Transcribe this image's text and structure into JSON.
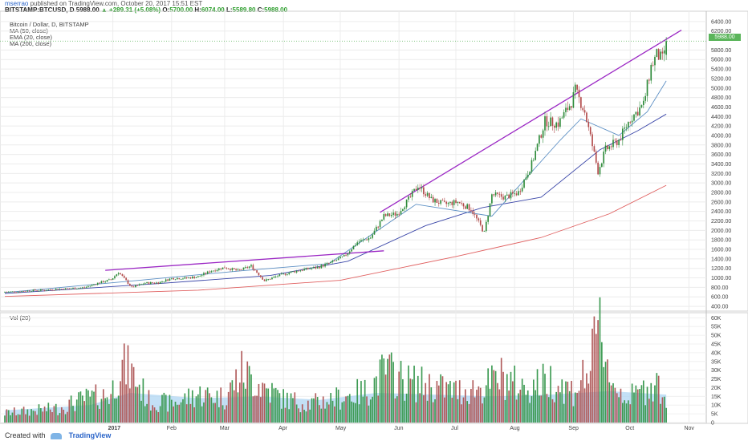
{
  "header": {
    "author": "mserrao",
    "published": "published on TradingView.com, October 20, 2017 15:51 EST",
    "symbol": "BITSTAMP:BTCUSD, D",
    "last": "5988.00",
    "change": "▲ +289.31 (+5.08%)",
    "open_label": "O:",
    "open": "5700.00",
    "high_label": "H:",
    "high": "6074.00",
    "low_label": "L:",
    "low": "5589.80",
    "close_label": "C:",
    "close": "5988.00"
  },
  "legend": [
    "Bitcoin / Dollar, D, BITSTAMP",
    "MA (50, close)",
    "EMA (20, close)",
    "MA (200, close)"
  ],
  "volume_title": "Vol (20)",
  "last_price_tag": "5988.00",
  "footer": {
    "created": "Created with",
    "brand": "TradingView"
  },
  "colors": {
    "up": "#2e8b3a",
    "down": "#b24a4a",
    "trendline": "#9b27c4",
    "ma50": "#3a46a8",
    "ema20": "#5c8fc4",
    "ma200": "#e06060",
    "vol_ma": "#a9d3f2"
  },
  "chart_data": [
    {
      "type": "candlestick",
      "title": "Bitcoin / Dollar, D, BITSTAMP",
      "x_tick_labels": [
        "2017",
        "Feb",
        "Mar",
        "Apr",
        "May",
        "Jun",
        "Jul",
        "Aug",
        "Sep",
        "Oct",
        "Nov"
      ],
      "y_ticks": [
        400,
        600,
        800,
        1000,
        1200,
        1400,
        1600,
        1800,
        2000,
        2200,
        2400,
        2600,
        2800,
        3000,
        3200,
        3400,
        3600,
        3800,
        4000,
        4200,
        4400,
        4600,
        4800,
        5000,
        5200,
        5400,
        5600,
        5800,
        6200,
        6400
      ],
      "ylim": [
        300,
        6550
      ],
      "x_range": [
        "2016-11-05",
        "2017-11-08"
      ],
      "grid": true,
      "closes_weekly": [
        [
          "2016-11-05",
          705
        ],
        [
          "2016-11-12",
          710
        ],
        [
          "2016-11-19",
          735
        ],
        [
          "2016-11-26",
          740
        ],
        [
          "2016-12-03",
          765
        ],
        [
          "2016-12-10",
          775
        ],
        [
          "2016-12-17",
          795
        ],
        [
          "2016-12-24",
          890
        ],
        [
          "2016-12-31",
          960
        ],
        [
          "2017-01-04",
          1120
        ],
        [
          "2017-01-11",
          800
        ],
        [
          "2017-01-18",
          890
        ],
        [
          "2017-01-25",
          900
        ],
        [
          "2017-02-01",
          990
        ],
        [
          "2017-02-08",
          995
        ],
        [
          "2017-02-15",
          1025
        ],
        [
          "2017-02-22",
          1150
        ],
        [
          "2017-03-01",
          1220
        ],
        [
          "2017-03-08",
          1150
        ],
        [
          "2017-03-15",
          1250
        ],
        [
          "2017-03-22",
          940
        ],
        [
          "2017-03-29",
          1040
        ],
        [
          "2017-04-05",
          1120
        ],
        [
          "2017-04-12",
          1180
        ],
        [
          "2017-04-19",
          1220
        ],
        [
          "2017-04-26",
          1320
        ],
        [
          "2017-05-03",
          1450
        ],
        [
          "2017-05-10",
          1750
        ],
        [
          "2017-05-17",
          1850
        ],
        [
          "2017-05-24",
          2300
        ],
        [
          "2017-05-31",
          2350
        ],
        [
          "2017-06-07",
          2700
        ],
        [
          "2017-06-11",
          2950
        ],
        [
          "2017-06-18",
          2650
        ],
        [
          "2017-06-25",
          2550
        ],
        [
          "2017-07-02",
          2600
        ],
        [
          "2017-07-09",
          2450
        ],
        [
          "2017-07-16",
          1950
        ],
        [
          "2017-07-20",
          2750
        ],
        [
          "2017-07-27",
          2700
        ],
        [
          "2017-08-03",
          2800
        ],
        [
          "2017-08-10",
          3400
        ],
        [
          "2017-08-17",
          4300
        ],
        [
          "2017-08-24",
          4250
        ],
        [
          "2017-08-31",
          4700
        ],
        [
          "2017-09-02",
          4950
        ],
        [
          "2017-09-07",
          4500
        ],
        [
          "2017-09-14",
          3250
        ],
        [
          "2017-09-18",
          3700
        ],
        [
          "2017-09-25",
          3900
        ],
        [
          "2017-10-01",
          4350
        ],
        [
          "2017-10-08",
          4650
        ],
        [
          "2017-10-12",
          5450
        ],
        [
          "2017-10-15",
          5700
        ],
        [
          "2017-10-18",
          5600
        ],
        [
          "2017-10-20",
          5988
        ]
      ],
      "last": {
        "open": 5700,
        "high": 6074,
        "low": 5589.8,
        "close": 5988
      },
      "overlays": [
        {
          "name": "MA (50, close)",
          "points": [
            [
              "2016-11-05",
              670
            ],
            [
              "2017-01-25",
              880
            ],
            [
              "2017-03-25",
              1050
            ],
            [
              "2017-05-05",
              1350
            ],
            [
              "2017-06-15",
              2100
            ],
            [
              "2017-07-15",
              2480
            ],
            [
              "2017-08-15",
              2700
            ],
            [
              "2017-09-15",
              3700
            ],
            [
              "2017-10-05",
              4100
            ],
            [
              "2017-10-20",
              4450
            ]
          ]
        },
        {
          "name": "EMA (20, close)",
          "points": [
            [
              "2016-11-05",
              690
            ],
            [
              "2017-01-15",
              950
            ],
            [
              "2017-03-10",
              1150
            ],
            [
              "2017-04-25",
              1300
            ],
            [
              "2017-06-10",
              2550
            ],
            [
              "2017-07-20",
              2300
            ],
            [
              "2017-08-25",
              3900
            ],
            [
              "2017-09-05",
              4350
            ],
            [
              "2017-09-25",
              4000
            ],
            [
              "2017-10-10",
              4500
            ],
            [
              "2017-10-20",
              5150
            ]
          ]
        },
        {
          "name": "MA (200, close)",
          "points": [
            [
              "2016-11-05",
              610
            ],
            [
              "2017-02-15",
              740
            ],
            [
              "2017-05-01",
              950
            ],
            [
              "2017-07-01",
              1450
            ],
            [
              "2017-08-15",
              1850
            ],
            [
              "2017-09-20",
              2350
            ],
            [
              "2017-10-20",
              2950
            ]
          ]
        }
      ],
      "trendlines": [
        {
          "points": [
            [
              "2016-12-28",
              1160
            ],
            [
              "2017-05-24",
              1570
            ]
          ]
        },
        {
          "points": [
            [
              "2017-05-22",
              2380
            ],
            [
              "2017-10-28",
              6220
            ]
          ]
        }
      ]
    },
    {
      "type": "bar",
      "title": "Vol (20)",
      "y_ticks": [
        "0",
        "5K",
        "10K",
        "15K",
        "20K",
        "25K",
        "30K",
        "35K",
        "40K",
        "45K",
        "50K",
        "55K",
        "60K"
      ],
      "ylim": [
        0,
        62000
      ],
      "volume_weekly": [
        [
          "2016-11-05",
          6000
        ],
        [
          "2016-11-19",
          7500
        ],
        [
          "2016-12-03",
          9000
        ],
        [
          "2016-12-17",
          15000
        ],
        [
          "2016-12-31",
          18000
        ],
        [
          "2017-01-05",
          36000
        ],
        [
          "2017-01-10",
          33000
        ],
        [
          "2017-01-20",
          14000
        ],
        [
          "2017-02-01",
          12000
        ],
        [
          "2017-02-15",
          18000
        ],
        [
          "2017-03-01",
          16000
        ],
        [
          "2017-03-10",
          32000
        ],
        [
          "2017-03-20",
          24000
        ],
        [
          "2017-04-01",
          15000
        ],
        [
          "2017-04-15",
          12000
        ],
        [
          "2017-05-01",
          16000
        ],
        [
          "2017-05-15",
          20000
        ],
        [
          "2017-05-25",
          33000
        ],
        [
          "2017-06-05",
          26000
        ],
        [
          "2017-06-15",
          24000
        ],
        [
          "2017-07-01",
          20000
        ],
        [
          "2017-07-15",
          22000
        ],
        [
          "2017-07-25",
          29000
        ],
        [
          "2017-08-05",
          22000
        ],
        [
          "2017-08-20",
          27000
        ],
        [
          "2017-09-01",
          20000
        ],
        [
          "2017-09-10",
          35000
        ],
        [
          "2017-09-15",
          61000
        ],
        [
          "2017-09-22",
          23000
        ],
        [
          "2017-10-01",
          16000
        ],
        [
          "2017-10-10",
          22000
        ],
        [
          "2017-10-14",
          28000
        ],
        [
          "2017-10-20",
          14000
        ]
      ],
      "ma20_weekly": [
        [
          "2016-11-05",
          7000
        ],
        [
          "2016-12-20",
          10000
        ],
        [
          "2017-01-10",
          17000
        ],
        [
          "2017-02-15",
          14000
        ],
        [
          "2017-03-20",
          15000
        ],
        [
          "2017-04-20",
          13000
        ],
        [
          "2017-05-20",
          17000
        ],
        [
          "2017-06-20",
          16000
        ],
        [
          "2017-07-20",
          15000
        ],
        [
          "2017-08-20",
          16000
        ],
        [
          "2017-09-20",
          18000
        ],
        [
          "2017-10-20",
          16000
        ]
      ]
    }
  ]
}
